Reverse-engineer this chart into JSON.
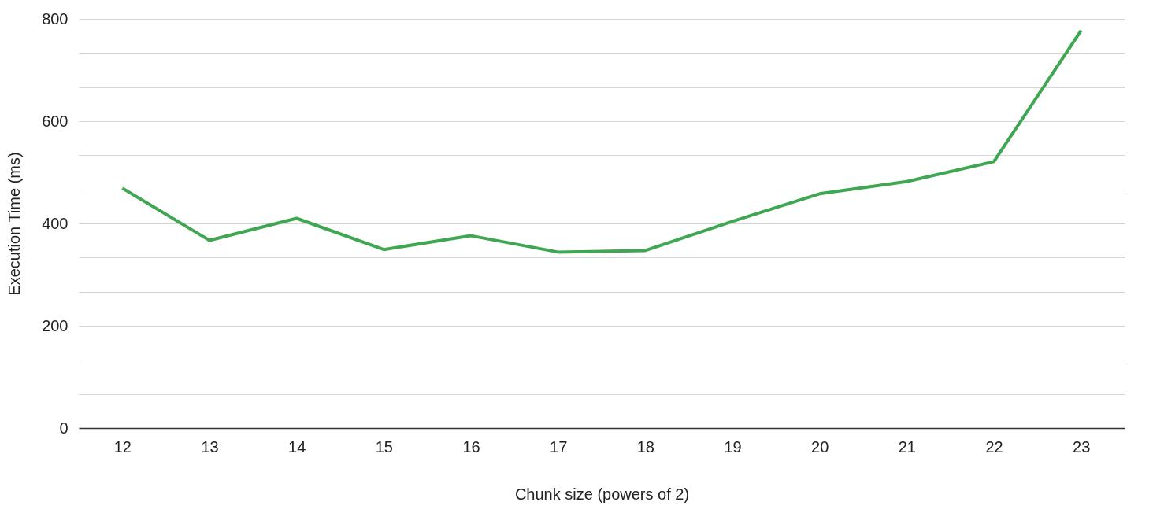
{
  "chart_data": {
    "type": "line",
    "xlabel": "Chunk size (powers of 2)",
    "ylabel": "Execution Time (ms)",
    "categories": [
      "12",
      "13",
      "14",
      "15",
      "16",
      "17",
      "18",
      "19",
      "20",
      "21",
      "22",
      "23"
    ],
    "series": [
      {
        "color": "#3fa652",
        "values": [
          469,
          367,
          410,
          349,
          376,
          344,
          347,
          404,
          458,
          482,
          521,
          777
        ]
      }
    ],
    "ylim": [
      0,
      800
    ],
    "yticks": [
      0,
      {
        "value": 66.667,
        "label": null
      },
      {
        "value": 133.333,
        "label": null
      },
      200,
      {
        "value": 266.667,
        "label": null
      },
      {
        "value": 333.333,
        "label": null
      },
      400,
      {
        "value": 466.667,
        "label": null
      },
      {
        "value": 533.333,
        "label": null
      },
      600,
      {
        "value": 666.667,
        "label": null
      },
      {
        "value": 733.333,
        "label": null
      },
      800
    ],
    "grid": "y",
    "marker": "none",
    "line_style": "solid"
  }
}
